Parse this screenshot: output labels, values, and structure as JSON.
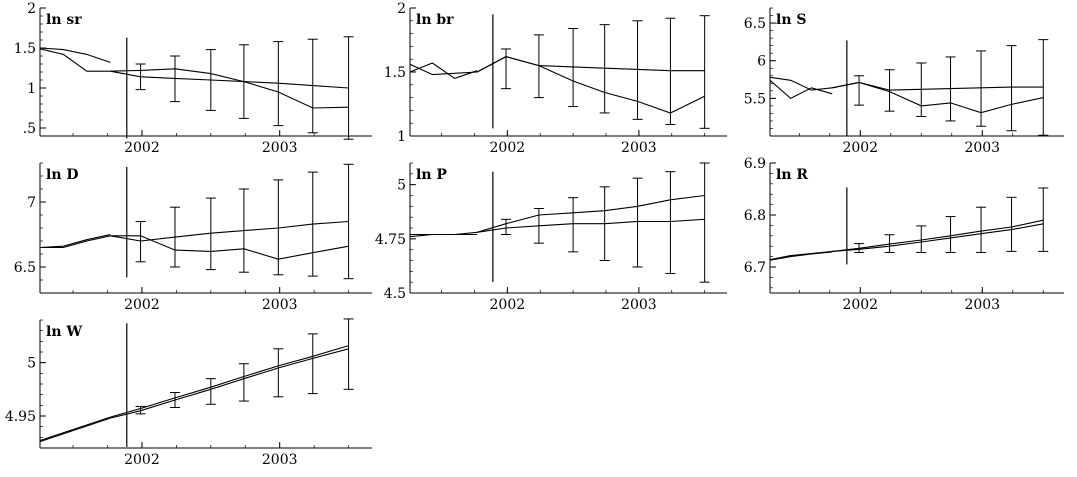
{
  "chart_data": [
    {
      "type": "line",
      "title": "ln sr",
      "xlim": [
        2001.26,
        2003.67
      ],
      "ylim": [
        0.4,
        2.0
      ],
      "yticks": [
        ".5",
        "1",
        "1.5",
        "2"
      ],
      "ytick_values": [
        0.5,
        1.0,
        1.5,
        2.0
      ],
      "xticks": [
        "2002",
        "2003"
      ],
      "xtick_values": [
        2002,
        2003
      ],
      "forecast_origin": 1.89,
      "vline_range": [
        0.37,
        1.63
      ],
      "series": [
        {
          "x": [
            2001.26,
            2001.43,
            2001.6,
            2001.77
          ],
          "y": [
            1.49,
            1.42,
            1.21,
            1.21
          ]
        },
        {
          "x": [
            2001.26,
            2001.43,
            2001.6,
            2001.77
          ],
          "y": [
            1.5,
            1.48,
            1.42,
            1.32
          ]
        },
        {
          "x": [
            2001.77,
            2001.99,
            2002.24,
            2002.5,
            2002.74,
            2002.99,
            2003.24,
            2003.5
          ],
          "y": [
            1.21,
            1.14,
            1.12,
            1.1,
            1.08,
            1.06,
            1.03,
            1.0
          ]
        },
        {
          "x": [
            2001.77,
            2001.99,
            2002.24,
            2002.5,
            2002.74,
            2002.99,
            2003.24,
            2003.5
          ],
          "y": [
            1.21,
            1.22,
            1.24,
            1.18,
            1.08,
            0.95,
            0.75,
            0.76
          ]
        }
      ],
      "error_bars": [
        {
          "x": 2001.99,
          "low": 0.98,
          "high": 1.3
        },
        {
          "x": 2002.24,
          "low": 0.83,
          "high": 1.4
        },
        {
          "x": 2002.5,
          "low": 0.72,
          "high": 1.48
        },
        {
          "x": 2002.74,
          "low": 0.62,
          "high": 1.54
        },
        {
          "x": 2002.99,
          "low": 0.53,
          "high": 1.58
        },
        {
          "x": 2003.24,
          "low": 0.44,
          "high": 1.61
        },
        {
          "x": 2003.5,
          "low": 0.36,
          "high": 1.64
        }
      ]
    },
    {
      "type": "line",
      "title": "ln br",
      "xlim": [
        2001.26,
        2003.67
      ],
      "ylim": [
        1.0,
        2.0
      ],
      "yticks": [
        "1",
        "1.5",
        "2"
      ],
      "ytick_values": [
        1.0,
        1.5,
        2.0
      ],
      "xticks": [
        "2002",
        "2003"
      ],
      "xtick_values": [
        2002,
        2003
      ],
      "forecast_origin": 1.89,
      "vline_range": [
        1.06,
        1.95
      ],
      "series": [
        {
          "x": [
            2001.26,
            2001.43,
            2001.6,
            2001.77
          ],
          "y": [
            1.56,
            1.48,
            1.49,
            1.5
          ]
        },
        {
          "x": [
            2001.26,
            2001.43,
            2001.6,
            2001.77
          ],
          "y": [
            1.5,
            1.57,
            1.45,
            1.51
          ]
        },
        {
          "x": [
            2001.77,
            2001.99,
            2002.24,
            2002.5,
            2002.74,
            2002.99,
            2003.24,
            2003.5
          ],
          "y": [
            1.5,
            1.62,
            1.55,
            1.54,
            1.53,
            1.52,
            1.51,
            1.51
          ]
        },
        {
          "x": [
            2001.77,
            2001.99,
            2002.24,
            2002.5,
            2002.74,
            2002.99,
            2003.24,
            2003.5
          ],
          "y": [
            1.5,
            1.62,
            1.55,
            1.43,
            1.34,
            1.27,
            1.18,
            1.31
          ]
        }
      ],
      "error_bars": [
        {
          "x": 2001.99,
          "low": 1.37,
          "high": 1.68
        },
        {
          "x": 2002.24,
          "low": 1.3,
          "high": 1.79
        },
        {
          "x": 2002.5,
          "low": 1.23,
          "high": 1.84
        },
        {
          "x": 2002.74,
          "low": 1.18,
          "high": 1.87
        },
        {
          "x": 2002.99,
          "low": 1.13,
          "high": 1.9
        },
        {
          "x": 2003.24,
          "low": 1.09,
          "high": 1.92
        },
        {
          "x": 2003.5,
          "low": 1.06,
          "high": 1.94
        }
      ]
    },
    {
      "type": "line",
      "title": "ln S",
      "xlim": [
        2001.26,
        2003.67
      ],
      "ylim": [
        5.0,
        6.7
      ],
      "yticks": [
        "5.5",
        "6",
        "6.5"
      ],
      "ytick_values": [
        5.5,
        6.0,
        6.5
      ],
      "xticks": [
        "2002",
        "2003"
      ],
      "xtick_values": [
        2002,
        2003
      ],
      "forecast_origin": 1.89,
      "vline_range": [
        5.0,
        6.27
      ],
      "series": [
        {
          "x": [
            2001.26,
            2001.43,
            2001.6,
            2001.77
          ],
          "y": [
            5.78,
            5.74,
            5.61,
            5.64
          ]
        },
        {
          "x": [
            2001.26,
            2001.43,
            2001.6,
            2001.77
          ],
          "y": [
            5.74,
            5.5,
            5.64,
            5.56
          ]
        },
        {
          "x": [
            2001.77,
            2001.99,
            2002.24,
            2002.5,
            2002.74,
            2002.99,
            2003.24,
            2003.5
          ],
          "y": [
            5.64,
            5.71,
            5.61,
            5.62,
            5.63,
            5.64,
            5.65,
            5.65
          ]
        },
        {
          "x": [
            2001.77,
            2001.99,
            2002.24,
            2002.5,
            2002.74,
            2002.99,
            2003.24,
            2003.5
          ],
          "y": [
            5.64,
            5.71,
            5.59,
            5.4,
            5.44,
            5.31,
            5.42,
            5.51
          ]
        }
      ],
      "error_bars": [
        {
          "x": 2001.99,
          "low": 5.41,
          "high": 5.8
        },
        {
          "x": 2002.24,
          "low": 5.33,
          "high": 5.88
        },
        {
          "x": 2002.5,
          "low": 5.26,
          "high": 5.97
        },
        {
          "x": 2002.74,
          "low": 5.2,
          "high": 6.05
        },
        {
          "x": 2002.99,
          "low": 5.13,
          "high": 6.13
        },
        {
          "x": 2003.24,
          "low": 5.07,
          "high": 6.2
        },
        {
          "x": 2003.5,
          "low": 5.01,
          "high": 6.28
        }
      ]
    },
    {
      "type": "line",
      "title": "ln D",
      "xlim": [
        2001.26,
        2003.67
      ],
      "ylim": [
        6.3,
        7.3
      ],
      "yticks": [
        "6.5",
        "7"
      ],
      "ytick_values": [
        6.5,
        7.0
      ],
      "xticks": [
        "2002",
        "2003"
      ],
      "xtick_values": [
        2002,
        2003
      ],
      "forecast_origin": 1.89,
      "vline_range": [
        6.42,
        7.27
      ],
      "series": [
        {
          "x": [
            2001.26,
            2001.43,
            2001.6,
            2001.77
          ],
          "y": [
            6.65,
            6.65,
            6.7,
            6.74
          ]
        },
        {
          "x": [
            2001.26,
            2001.43,
            2001.6,
            2001.77
          ],
          "y": [
            6.65,
            6.66,
            6.71,
            6.75
          ]
        },
        {
          "x": [
            2001.77,
            2001.99,
            2002.24,
            2002.5,
            2002.74,
            2002.99,
            2003.24,
            2003.5
          ],
          "y": [
            6.74,
            6.7,
            6.73,
            6.76,
            6.78,
            6.8,
            6.83,
            6.85
          ]
        },
        {
          "x": [
            2001.77,
            2001.99,
            2002.24,
            2002.5,
            2002.74,
            2002.99,
            2003.24,
            2003.5
          ],
          "y": [
            6.74,
            6.74,
            6.63,
            6.62,
            6.64,
            6.56,
            6.61,
            6.66
          ]
        }
      ],
      "error_bars": [
        {
          "x": 2001.99,
          "low": 6.54,
          "high": 6.85
        },
        {
          "x": 2002.24,
          "low": 6.5,
          "high": 6.96
        },
        {
          "x": 2002.5,
          "low": 6.48,
          "high": 7.03
        },
        {
          "x": 2002.74,
          "low": 6.46,
          "high": 7.1
        },
        {
          "x": 2002.99,
          "low": 6.44,
          "high": 7.17
        },
        {
          "x": 2003.24,
          "low": 6.43,
          "high": 7.23
        },
        {
          "x": 2003.5,
          "low": 6.41,
          "high": 7.29
        }
      ]
    },
    {
      "type": "line",
      "title": "ln P",
      "xlim": [
        2001.26,
        2003.67
      ],
      "ylim": [
        4.5,
        5.1
      ],
      "yticks": [
        "4.5",
        "4.75",
        "5"
      ],
      "ytick_values": [
        4.5,
        4.75,
        5.0
      ],
      "xticks": [
        "2002",
        "2003"
      ],
      "xtick_values": [
        2002,
        2003
      ],
      "forecast_origin": 1.89,
      "vline_range": [
        4.55,
        5.06
      ],
      "series": [
        {
          "x": [
            2001.26,
            2001.43,
            2001.6,
            2001.77
          ],
          "y": [
            4.76,
            4.77,
            4.77,
            4.78
          ]
        },
        {
          "x": [
            2001.26,
            2001.43,
            2001.6,
            2001.77
          ],
          "y": [
            4.77,
            4.77,
            4.77,
            4.77
          ]
        },
        {
          "x": [
            2001.77,
            2001.99,
            2002.24,
            2002.5,
            2002.74,
            2002.99,
            2003.24,
            2003.5
          ],
          "y": [
            4.78,
            4.8,
            4.81,
            4.82,
            4.82,
            4.83,
            4.83,
            4.84
          ]
        },
        {
          "x": [
            2001.77,
            2001.99,
            2002.24,
            2002.5,
            2002.74,
            2002.99,
            2003.24,
            2003.5
          ],
          "y": [
            4.78,
            4.82,
            4.86,
            4.87,
            4.88,
            4.9,
            4.93,
            4.95
          ]
        }
      ],
      "error_bars": [
        {
          "x": 2001.99,
          "low": 4.77,
          "high": 4.84
        },
        {
          "x": 2002.24,
          "low": 4.73,
          "high": 4.89
        },
        {
          "x": 2002.5,
          "low": 4.69,
          "high": 4.94
        },
        {
          "x": 2002.74,
          "low": 4.65,
          "high": 4.99
        },
        {
          "x": 2002.99,
          "low": 4.62,
          "high": 5.03
        },
        {
          "x": 2003.24,
          "low": 4.59,
          "high": 5.06
        },
        {
          "x": 2003.5,
          "low": 4.55,
          "high": 5.1
        }
      ]
    },
    {
      "type": "line",
      "title": "ln R",
      "xlim": [
        2001.26,
        2003.67
      ],
      "ylim": [
        6.65,
        6.9
      ],
      "yticks": [
        "6.7",
        "6.8",
        "6.9"
      ],
      "ytick_values": [
        6.7,
        6.8,
        6.9
      ],
      "xticks": [
        "2002",
        "2003"
      ],
      "xtick_values": [
        2002,
        2003
      ],
      "forecast_origin": 1.89,
      "vline_range": [
        6.705,
        6.853
      ],
      "series": [
        {
          "x": [
            2001.26,
            2001.43,
            2001.6,
            2001.77
          ],
          "y": [
            6.713,
            6.72,
            6.725,
            6.729
          ]
        },
        {
          "x": [
            2001.26,
            2001.43,
            2001.6,
            2001.77
          ],
          "y": [
            6.714,
            6.722,
            6.726,
            6.73
          ]
        },
        {
          "x": [
            2001.77,
            2001.99,
            2002.24,
            2002.5,
            2002.74,
            2002.99,
            2003.24,
            2003.5
          ],
          "y": [
            6.73,
            6.734,
            6.74,
            6.748,
            6.756,
            6.764,
            6.772,
            6.783
          ]
        },
        {
          "x": [
            2001.77,
            2001.99,
            2002.24,
            2002.5,
            2002.74,
            2002.99,
            2003.24,
            2003.5
          ],
          "y": [
            6.73,
            6.736,
            6.744,
            6.752,
            6.76,
            6.769,
            6.777,
            6.79
          ]
        }
      ],
      "error_bars": [
        {
          "x": 2001.99,
          "low": 6.728,
          "high": 6.745
        },
        {
          "x": 2002.24,
          "low": 6.728,
          "high": 6.762
        },
        {
          "x": 2002.5,
          "low": 6.728,
          "high": 6.779
        },
        {
          "x": 2002.74,
          "low": 6.728,
          "high": 6.797
        },
        {
          "x": 2002.99,
          "low": 6.728,
          "high": 6.815
        },
        {
          "x": 2003.24,
          "low": 6.73,
          "high": 6.834
        },
        {
          "x": 2003.5,
          "low": 6.73,
          "high": 6.852
        }
      ]
    },
    {
      "type": "line",
      "title": "ln W",
      "xlim": [
        2001.26,
        2003.67
      ],
      "ylim": [
        4.92,
        5.04
      ],
      "yticks": [
        "4.95",
        "5"
      ],
      "ytick_values": [
        4.95,
        5.0
      ],
      "xticks": [
        "2002",
        "2003"
      ],
      "xtick_values": [
        2002,
        2003
      ],
      "forecast_origin": 1.89,
      "vline_range": [
        4.921,
        5.037
      ],
      "series": [
        {
          "x": [
            2001.26,
            2001.77
          ],
          "y": [
            4.926,
            4.948
          ]
        },
        {
          "x": [
            2001.26,
            2001.77
          ],
          "y": [
            4.927,
            4.949
          ]
        },
        {
          "x": [
            2001.77,
            2001.99,
            2002.24,
            2002.5,
            2002.74,
            2002.99,
            2003.24,
            2003.5
          ],
          "y": [
            4.948,
            4.955,
            4.965,
            4.975,
            4.985,
            4.995,
            5.004,
            5.013
          ]
        },
        {
          "x": [
            2001.77,
            2001.99,
            2002.24,
            2002.5,
            2002.74,
            2002.99,
            2003.24,
            2003.5
          ],
          "y": [
            4.949,
            4.957,
            4.967,
            4.977,
            4.987,
            4.997,
            5.006,
            5.016
          ]
        }
      ],
      "error_bars": [
        {
          "x": 2001.99,
          "low": 4.952,
          "high": 4.959
        },
        {
          "x": 2002.24,
          "low": 4.958,
          "high": 4.972
        },
        {
          "x": 2002.5,
          "low": 4.961,
          "high": 4.985
        },
        {
          "x": 2002.74,
          "low": 4.964,
          "high": 4.999
        },
        {
          "x": 2002.99,
          "low": 4.968,
          "high": 5.013
        },
        {
          "x": 2003.24,
          "low": 4.971,
          "high": 5.027
        },
        {
          "x": 2003.5,
          "low": 4.975,
          "high": 5.041
        }
      ]
    }
  ]
}
